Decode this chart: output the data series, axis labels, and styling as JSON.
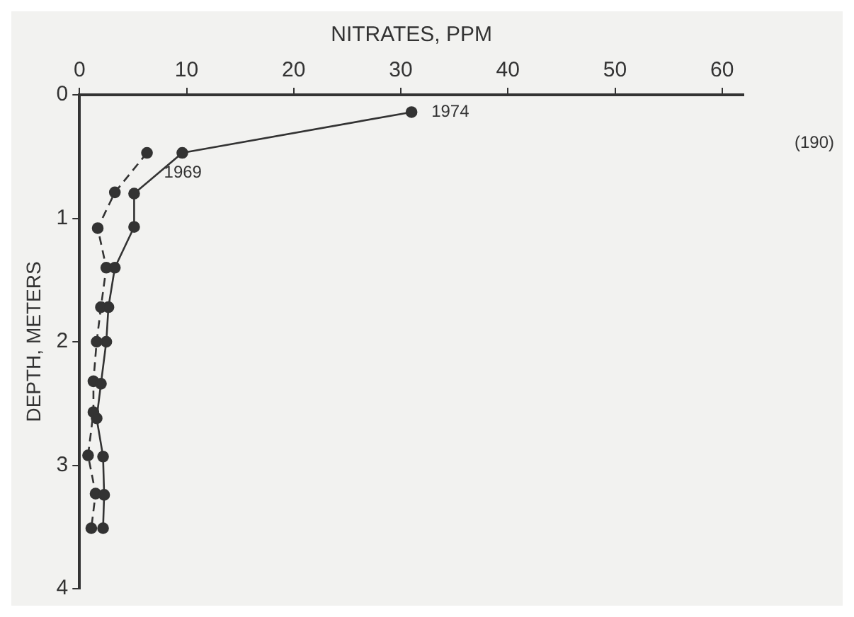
{
  "chart_data": {
    "type": "line",
    "xlabel": "NITRATES, PPM",
    "ylabel": "DEPTH, METERS",
    "xlim": [
      0,
      62
    ],
    "xticks": [
      0,
      10,
      20,
      30,
      40,
      50,
      60
    ],
    "ylim": [
      4,
      0
    ],
    "yticks": [
      0,
      1,
      2,
      3,
      4
    ],
    "marker": "circle",
    "series": [
      {
        "name": "1974",
        "color": "#333333",
        "line_style": "solid",
        "x": [
          31,
          9.6,
          5.1,
          5.1,
          3.3,
          2.7,
          2.5,
          2.0,
          1.6,
          2.2,
          2.3,
          2.2
        ],
        "values": [
          0.14,
          0.47,
          0.8,
          1.07,
          1.4,
          1.72,
          2.0,
          2.34,
          2.62,
          2.93,
          3.24,
          3.51
        ]
      },
      {
        "name": "1969",
        "color": "#333333",
        "line_style": "dashed",
        "x": [
          null,
          6.3,
          3.3,
          1.7,
          2.5,
          2.0,
          1.6,
          1.3,
          1.3,
          0.8,
          1.5,
          1.1
        ],
        "values": [
          null,
          0.47,
          0.79,
          1.08,
          1.4,
          1.72,
          2.0,
          2.32,
          2.57,
          2.92,
          3.23,
          3.51
        ]
      }
    ],
    "annotations": [
      "(190)"
    ]
  }
}
